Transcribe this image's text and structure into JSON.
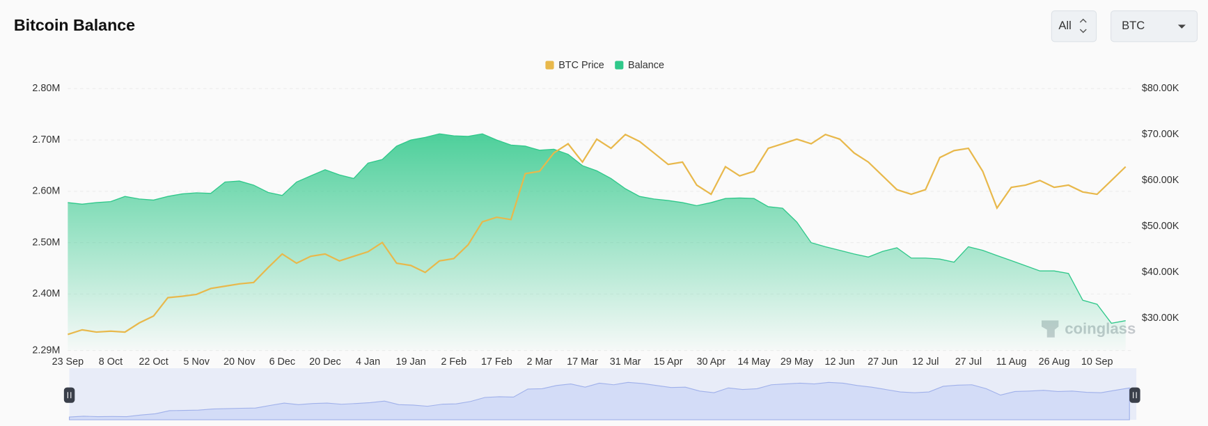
{
  "header": {
    "title": "Bitcoin Balance",
    "range_button": "All",
    "asset_select": "BTC"
  },
  "watermark": "coinglass",
  "chart_data": {
    "type": "line",
    "categories": [
      "23 Sep",
      null,
      null,
      "8 Oct",
      null,
      null,
      "22 Oct",
      null,
      null,
      "5 Nov",
      null,
      null,
      "20 Nov",
      null,
      null,
      "6 Dec",
      null,
      null,
      "20 Dec",
      null,
      null,
      "4 Jan",
      null,
      null,
      "19 Jan",
      null,
      null,
      "2 Feb",
      null,
      null,
      "17 Feb",
      null,
      null,
      "2 Mar",
      null,
      null,
      "17 Mar",
      null,
      null,
      "31 Mar",
      null,
      null,
      "15 Apr",
      null,
      null,
      "30 Apr",
      null,
      null,
      "14 May",
      null,
      null,
      "29 May",
      null,
      null,
      "12 Jun",
      null,
      null,
      "27 Jun",
      null,
      null,
      "12 Jul",
      null,
      null,
      "27 Jul",
      null,
      null,
      "11 Aug",
      null,
      null,
      "26 Aug",
      null,
      null,
      "10 Sep",
      null,
      null
    ],
    "series": [
      {
        "name": "BTC Price",
        "color": "#e8b84b",
        "axis": "y2",
        "values": [
          26500,
          27500,
          27000,
          27200,
          27000,
          29000,
          30500,
          34500,
          34800,
          35200,
          36500,
          37000,
          37500,
          37800,
          41000,
          44000,
          42000,
          43500,
          44000,
          42500,
          43500,
          44500,
          46500,
          42000,
          41500,
          40000,
          42500,
          43000,
          46000,
          51000,
          52000,
          51500,
          61500,
          62000,
          66000,
          68000,
          64000,
          69000,
          67000,
          70000,
          68500,
          66000,
          63500,
          64000,
          59000,
          57000,
          63000,
          61000,
          62000,
          67000,
          68000,
          69000,
          68000,
          70000,
          69000,
          66000,
          64000,
          61000,
          58000,
          57000,
          58000,
          65000,
          66500,
          67000,
          62000,
          54000,
          58500,
          59000,
          60000,
          58500,
          59000,
          57500,
          57000,
          60000,
          63000
        ]
      },
      {
        "name": "Balance",
        "color": "#2fc88a",
        "values": [
          2578000,
          2575000,
          2578000,
          2580000,
          2590000,
          2585000,
          2583000,
          2590000,
          2595000,
          2597000,
          2596000,
          2618000,
          2620000,
          2612000,
          2598000,
          2592000,
          2618000,
          2630000,
          2642000,
          2632000,
          2625000,
          2655000,
          2662000,
          2688000,
          2700000,
          2705000,
          2712000,
          2708000,
          2707000,
          2712000,
          2700000,
          2690000,
          2688000,
          2680000,
          2682000,
          2672000,
          2650000,
          2640000,
          2625000,
          2605000,
          2590000,
          2585000,
          2582000,
          2578000,
          2572000,
          2578000,
          2586000,
          2587000,
          2586000,
          2570000,
          2567000,
          2540000,
          2500000,
          2492000,
          2485000,
          2478000,
          2472000,
          2483000,
          2490000,
          2470000,
          2470000,
          2468000,
          2462000,
          2492000,
          2485000,
          2475000,
          2465000,
          2455000,
          2445000,
          2445000,
          2440000,
          2388000,
          2380000,
          2343000,
          2348000
        ]
      }
    ],
    "ylim": [
      2290000,
      2800000
    ],
    "yticks": [
      {
        "value": 2290000,
        "label": "2.29M"
      },
      {
        "value": 2400000,
        "label": "2.40M"
      },
      {
        "value": 2500000,
        "label": "2.50M"
      },
      {
        "value": 2600000,
        "label": "2.60M"
      },
      {
        "value": 2700000,
        "label": "2.70M"
      },
      {
        "value": 2800000,
        "label": "2.80M"
      }
    ],
    "y2lim": [
      23000,
      80000
    ],
    "y2ticks": [
      {
        "value": 30000,
        "label": "$30.00K"
      },
      {
        "value": 40000,
        "label": "$40.00K"
      },
      {
        "value": 50000,
        "label": "$50.00K"
      },
      {
        "value": 60000,
        "label": "$60.00K"
      },
      {
        "value": 70000,
        "label": "$70.00K"
      },
      {
        "value": 80000,
        "label": "$80.00K"
      }
    ],
    "grid": true,
    "legend": "top"
  }
}
